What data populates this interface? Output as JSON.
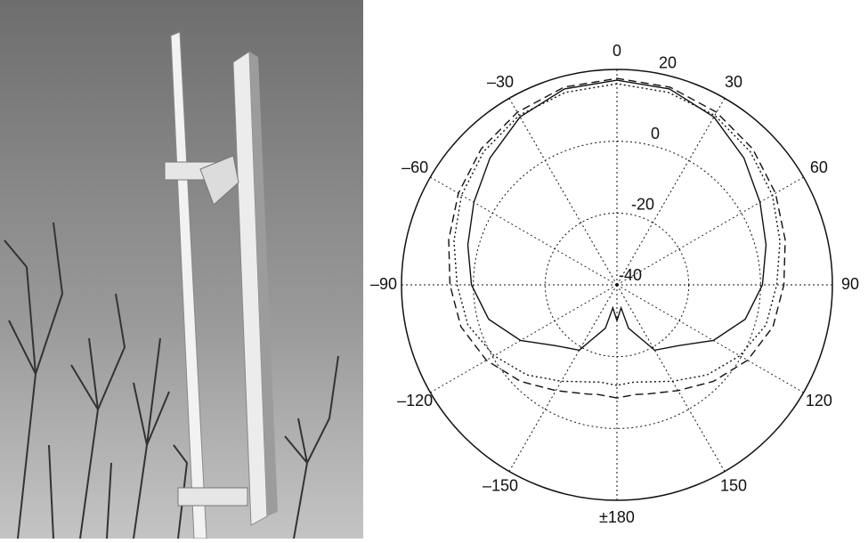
{
  "chart_data": {
    "type": "polar",
    "theta": [
      -180,
      -170,
      -165,
      -150,
      -135,
      -120,
      -105,
      -90,
      -75,
      -60,
      -45,
      -30,
      -15,
      0,
      15,
      30,
      45,
      60,
      75,
      90,
      105,
      120,
      135,
      150,
      165,
      170,
      180
    ],
    "rlim": [
      -40,
      20
    ],
    "rticks": [
      -40,
      -20,
      0,
      20
    ],
    "thetaticks": [
      0,
      30,
      60,
      90,
      120,
      150,
      {
        "value": 180,
        "label": "±180"
      },
      {
        "value": -150,
        "label": "–150"
      },
      {
        "value": -120,
        "label": "–120"
      },
      {
        "value": -90,
        "label": "–90"
      },
      {
        "value": -60,
        "label": "–60"
      },
      {
        "value": -30,
        "label": "–30"
      }
    ],
    "grid": true,
    "series": [
      {
        "color": "#111111",
        "dash": "solid",
        "values": [
          -30,
          -33.5,
          -27.5,
          -19,
          -16,
          -9,
          -3,
          0.5,
          3,
          6,
          10,
          14,
          16.5,
          17,
          16.5,
          14,
          10,
          6,
          3,
          0.5,
          -3,
          -9,
          -16,
          -19,
          -27.5,
          -33.5,
          -30
        ]
      },
      {
        "color": "#111111",
        "dash": "dashed",
        "values": [
          -8.5,
          -9,
          -8.5,
          -6,
          -2,
          2,
          5,
          6.5,
          8.5,
          11,
          13.5,
          15.5,
          17,
          17.5,
          17,
          15.5,
          13.5,
          11,
          8.5,
          6.5,
          5,
          2,
          -2,
          -6,
          -8.5,
          -9,
          -8.5
        ]
      },
      {
        "color": "#111111",
        "dash": "dotted",
        "values": [
          -12,
          -12.5,
          -12,
          -9,
          -4.5,
          -0.5,
          3,
          4.5,
          7,
          10,
          12.5,
          14.5,
          15.5,
          16,
          15.5,
          14.5,
          12.5,
          10,
          7,
          4.5,
          3,
          -0.5,
          -4.5,
          -9,
          -12,
          -12.5,
          -12
        ]
      }
    ]
  }
}
